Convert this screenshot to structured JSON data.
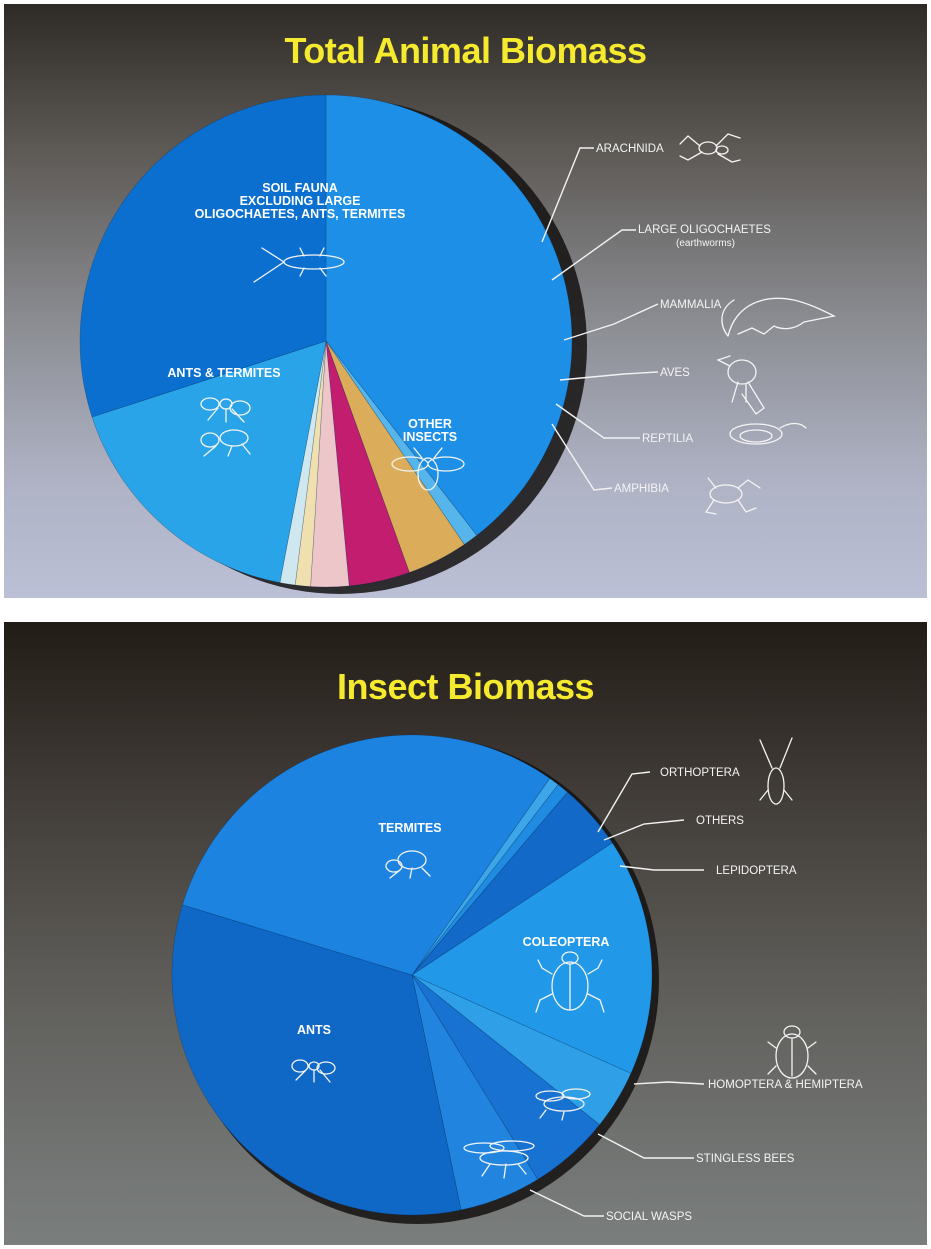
{
  "chart_data": [
    {
      "type": "pie",
      "title": "Total Animal Biomass",
      "start_angle_deg": 270,
      "slices": [
        {
          "label": "SOIL FAUNA EXCLUDING LARGE OLIGOCHAETES, ANTS, TERMITES",
          "value": 39.5,
          "color": "#1e8fe6"
        },
        {
          "label": "ARACHNIDA",
          "value": 1.0,
          "color": "#56b6ec"
        },
        {
          "label": "LARGE OLIGOCHAETES (earthworms)",
          "value": 4.0,
          "color": "#dbad5a"
        },
        {
          "label": "MAMMALIA",
          "value": 4.0,
          "color": "#c21d6e"
        },
        {
          "label": "AVES",
          "value": 2.5,
          "color": "#ecc6c8"
        },
        {
          "label": "REPTILIA",
          "value": 1.0,
          "color": "#f0e0b0"
        },
        {
          "label": "AMPHIBIA",
          "value": 1.0,
          "color": "#cfe7ee"
        },
        {
          "label": "OTHER INSECTS",
          "value": 17.0,
          "color": "#2aa4e8"
        },
        {
          "label": "ANTS & TERMITES",
          "value": 30.0,
          "color": "#0a6fcf"
        }
      ]
    },
    {
      "type": "pie",
      "title": "Insect Biomass",
      "start_angle_deg": 305,
      "slices": [
        {
          "label": "ORTHOPTERA",
          "value": 0.7,
          "color": "#3ca6e8"
        },
        {
          "label": "OTHERS",
          "value": 0.8,
          "color": "#1f8ce2"
        },
        {
          "label": "LEPIDOPTERA",
          "value": 4.5,
          "color": "#1369c8"
        },
        {
          "label": "COLEOPTERA",
          "value": 16.0,
          "color": "#2198e8"
        },
        {
          "label": "HOMOPTERA & HEMIPTERA",
          "value": 4.0,
          "color": "#2f9fe8"
        },
        {
          "label": "STINGLESS BEES",
          "value": 5.5,
          "color": "#1872d2"
        },
        {
          "label": "SOCIAL WASPS",
          "value": 5.5,
          "color": "#2185e0"
        },
        {
          "label": "ANTS",
          "value": 33.0,
          "color": "#0f67c6"
        },
        {
          "label": "TERMITES",
          "value": 30.0,
          "color": "#1c84e0"
        }
      ]
    }
  ],
  "panel1": {
    "title": "Total Animal Biomass",
    "labels": {
      "soil_fauna_1": "SOIL FAUNA",
      "soil_fauna_2": "EXCLUDING LARGE",
      "soil_fauna_3": "OLIGOCHAETES, ANTS, TERMITES",
      "ants_termites": "ANTS & TERMITES",
      "other_insects_1": "OTHER",
      "other_insects_2": "INSECTS",
      "arachnida": "ARACHNIDA",
      "large_oligochaetes": "LARGE OLIGOCHAETES",
      "earthworms": "(earthworms)",
      "mammalia": "MAMMALIA",
      "aves": "AVES",
      "reptilia": "REPTILIA",
      "amphibia": "AMPHIBIA"
    }
  },
  "panel2": {
    "title": "Insect Biomass",
    "labels": {
      "termites": "TERMITES",
      "ants": "ANTS",
      "coleoptera": "COLEOPTERA",
      "orthoptera": "ORTHOPTERA",
      "others": "OTHERS",
      "lepidoptera": "LEPIDOPTERA",
      "homoptera": "HOMOPTERA & HEMIPTERA",
      "stingless_bees": "STINGLESS BEES",
      "social_wasps": "SOCIAL WASPS"
    }
  }
}
